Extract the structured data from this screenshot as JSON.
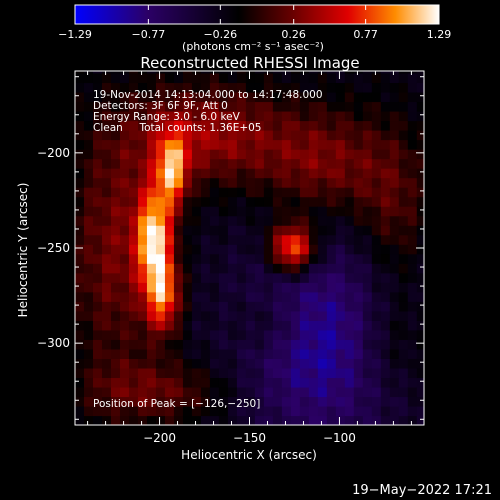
{
  "chart_data": {
    "type": "heatmap",
    "title": "Reconstructed RHESSI Image",
    "xlabel": "Heliocentric X (arcsec)",
    "ylabel": "Heliocentric Y (arcsec)",
    "xlim": [
      -247,
      -53
    ],
    "ylim": [
      -343,
      -157
    ],
    "xticks": [
      {
        "value": -200,
        "label": "−200"
      },
      {
        "value": -150,
        "label": "−150"
      },
      {
        "value": -100,
        "label": "−100"
      }
    ],
    "yticks": [
      {
        "value": -200,
        "label": "−200"
      },
      {
        "value": -250,
        "label": "−250"
      },
      {
        "value": -300,
        "label": "−300"
      }
    ],
    "colorbar": {
      "range": [
        -1.29,
        1.29
      ],
      "ticks": [
        {
          "value": -1.29,
          "label": "−1.29"
        },
        {
          "value": -0.77,
          "label": "−0.77"
        },
        {
          "value": -0.26,
          "label": "−0.26"
        },
        {
          "value": 0.26,
          "label": "0.26"
        },
        {
          "value": 0.77,
          "label": "0.77"
        },
        {
          "value": 1.29,
          "label": "1.29"
        }
      ],
      "unit_label": "(photons cm⁻² s⁻¹ asec⁻²)"
    },
    "info_lines": [
      "19-Nov-2014 14:13:04.000 to 14:17:48.000",
      "Detectors: 3F 6F 9F, Att 0",
      "Energy Range: 3.0 - 6.0 keV",
      "Clean     Total counts: 1.36E+05"
    ],
    "peak_label": "Position of Peak = [−126,−250]",
    "peak": {
      "x": -126,
      "y": -250
    },
    "sources": [
      {
        "x": -203,
        "y": -244,
        "sx": 7,
        "sy": 18,
        "amp": 1.0
      },
      {
        "x": -193,
        "y": -209,
        "sx": 6,
        "sy": 14,
        "amp": 0.82
      },
      {
        "x": -198,
        "y": -275,
        "sx": 7,
        "sy": 14,
        "amp": 0.78
      },
      {
        "x": -126,
        "y": -250,
        "sx": 9,
        "sy": 9,
        "amp": 1.0
      },
      {
        "x": -175,
        "y": -190,
        "sx": 30,
        "sy": 18,
        "amp": 0.5
      },
      {
        "x": -225,
        "y": -250,
        "sx": 18,
        "sy": 45,
        "amp": 0.4
      },
      {
        "x": -110,
        "y": -205,
        "sx": 25,
        "sy": 20,
        "amp": 0.42
      },
      {
        "x": -70,
        "y": -230,
        "sx": 15,
        "sy": 30,
        "amp": 0.3
      },
      {
        "x": -200,
        "y": -325,
        "sx": 30,
        "sy": 12,
        "amp": 0.35
      },
      {
        "x": -140,
        "y": -290,
        "sx": 15,
        "sy": 12,
        "amp": 0.22
      },
      {
        "x": -70,
        "y": -300,
        "sx": 15,
        "sy": 20,
        "amp": 0.25
      }
    ],
    "background_level": -0.25,
    "negative_region": {
      "x": -110,
      "y": -300,
      "sx": 35,
      "sy": 40,
      "amp": -0.55
    }
  },
  "timestamp": "19−May−2022 17:21",
  "colors": {
    "background": "#000000",
    "foreground": "#ffffff"
  }
}
